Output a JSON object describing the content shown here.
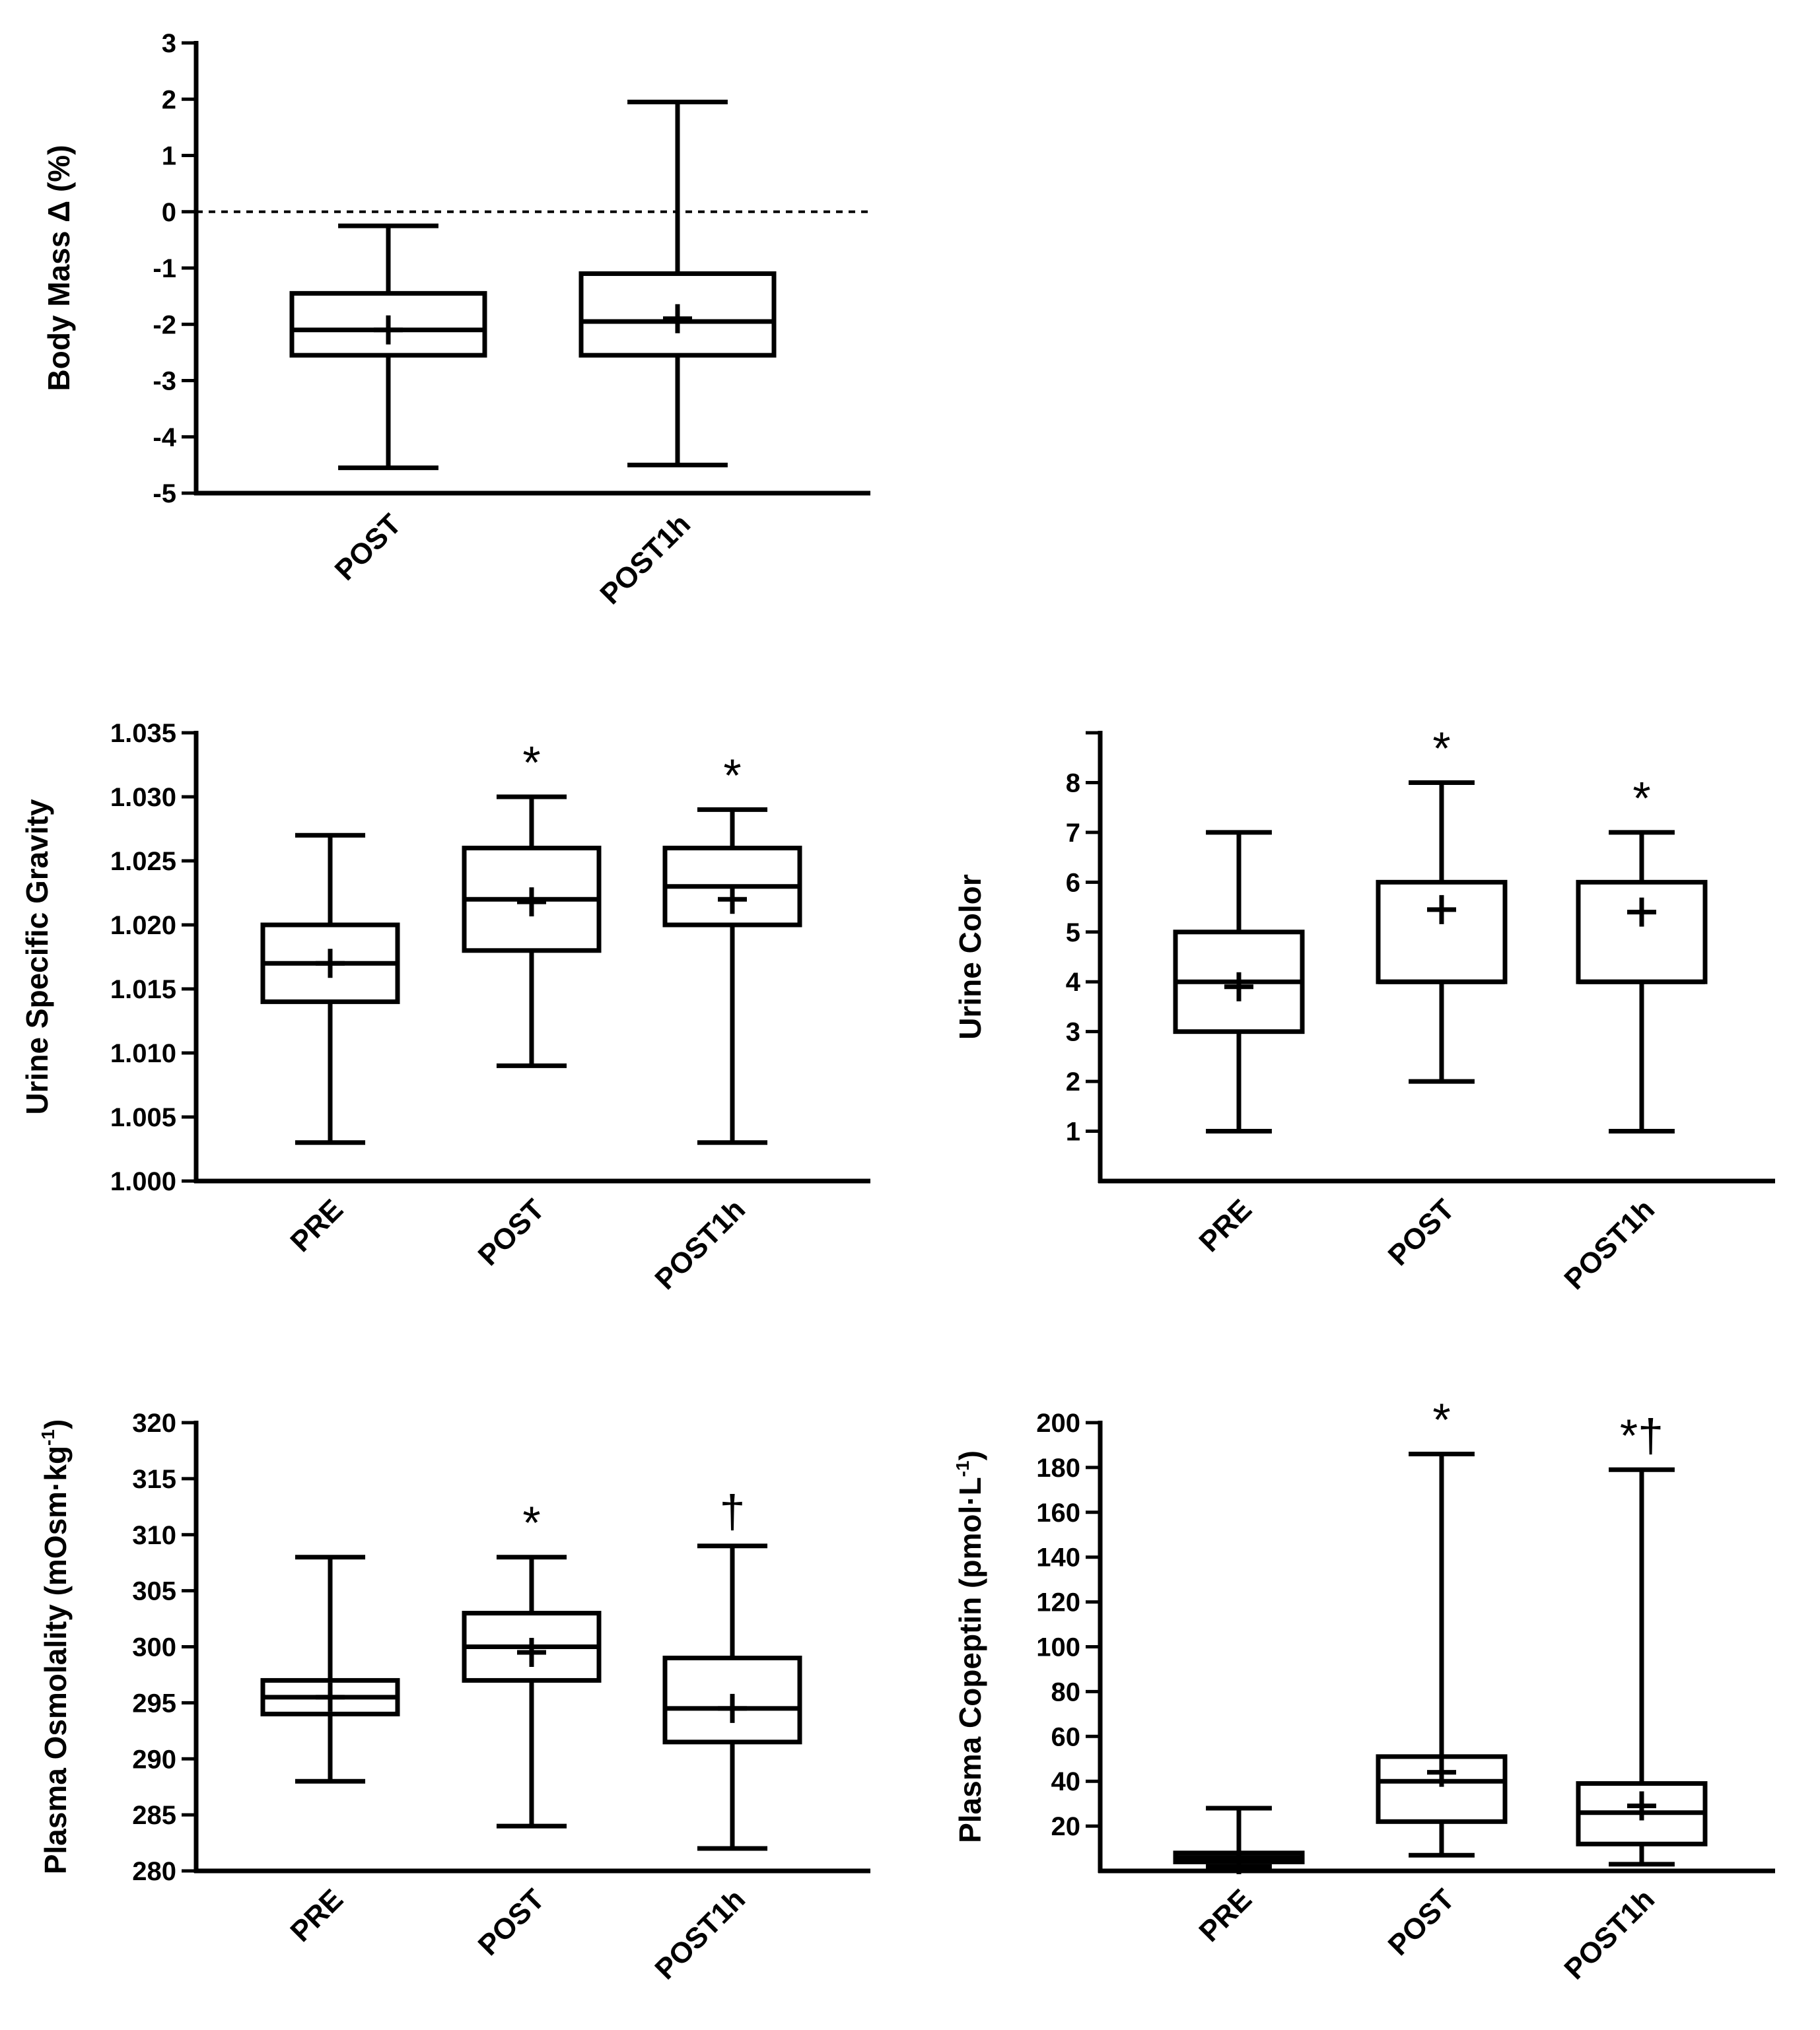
{
  "chart_data": [
    {
      "id": "body-mass",
      "type": "box",
      "title": "",
      "ylabel": "Body Mass Δ (%)",
      "ylim": [
        -5,
        3
      ],
      "yticks": [
        {
          "v": 3,
          "label": "3"
        },
        {
          "v": 2,
          "label": "2"
        },
        {
          "v": 1,
          "label": "1"
        },
        {
          "v": 0,
          "label": "0"
        },
        {
          "v": -1,
          "label": "-1"
        },
        {
          "v": -2,
          "label": "-2"
        },
        {
          "v": -3,
          "label": "-3"
        },
        {
          "v": -4,
          "label": "-4"
        },
        {
          "v": -5,
          "label": "-5"
        }
      ],
      "reference_line": 0,
      "categories": [
        "POST",
        "POST1h"
      ],
      "boxes": [
        {
          "min": -4.55,
          "q1": -2.55,
          "median": -2.1,
          "q3": -1.45,
          "max": -0.25,
          "mean": -2.1,
          "sig": ""
        },
        {
          "min": -4.5,
          "q1": -2.55,
          "median": -1.95,
          "q3": -1.1,
          "max": 1.95,
          "mean": -1.9,
          "sig": ""
        }
      ]
    },
    {
      "id": "usg",
      "type": "box",
      "title": "",
      "ylabel": "Urine Specific Gravity",
      "ylim": [
        1.0,
        1.035
      ],
      "yticks": [
        {
          "v": 1.035,
          "label": "1.035"
        },
        {
          "v": 1.03,
          "label": "1.030"
        },
        {
          "v": 1.025,
          "label": "1.025"
        },
        {
          "v": 1.02,
          "label": "1.020"
        },
        {
          "v": 1.015,
          "label": "1.015"
        },
        {
          "v": 1.01,
          "label": "1.010"
        },
        {
          "v": 1.005,
          "label": "1.005"
        },
        {
          "v": 1.0,
          "label": "1.000"
        }
      ],
      "categories": [
        "PRE",
        "POST",
        "POST1h"
      ],
      "boxes": [
        {
          "min": 1.003,
          "q1": 1.014,
          "median": 1.017,
          "q3": 1.02,
          "max": 1.027,
          "mean": 1.017,
          "sig": ""
        },
        {
          "min": 1.009,
          "q1": 1.018,
          "median": 1.022,
          "q3": 1.026,
          "max": 1.03,
          "mean": 1.0218,
          "sig": "*"
        },
        {
          "min": 1.003,
          "q1": 1.02,
          "median": 1.023,
          "q3": 1.026,
          "max": 1.029,
          "mean": 1.022,
          "sig": "*"
        }
      ]
    },
    {
      "id": "urine-color",
      "type": "box",
      "title": "",
      "ylabel": "Urine Color",
      "ylim": [
        0,
        9
      ],
      "yticks": [
        {
          "v": 1,
          "label": "1"
        },
        {
          "v": 2,
          "label": "2"
        },
        {
          "v": 3,
          "label": "3"
        },
        {
          "v": 4,
          "label": "4"
        },
        {
          "v": 5,
          "label": "5"
        },
        {
          "v": 6,
          "label": "6"
        },
        {
          "v": 7,
          "label": "7"
        },
        {
          "v": 8,
          "label": "8"
        }
      ],
      "minor_ticks": [
        9
      ],
      "categories": [
        "PRE",
        "POST",
        "POST1h"
      ],
      "boxes": [
        {
          "min": 1,
          "q1": 3,
          "median": 4,
          "q3": 5,
          "max": 7,
          "mean": 3.9,
          "sig": ""
        },
        {
          "min": 2,
          "q1": 4,
          "median": 4,
          "q3": 6,
          "max": 8,
          "mean": 5.45,
          "sig": "*"
        },
        {
          "min": 1,
          "q1": 4,
          "median": 4,
          "q3": 6,
          "max": 7,
          "mean": 5.4,
          "sig": "*"
        }
      ]
    },
    {
      "id": "plasma-osmolality",
      "type": "box",
      "title": "",
      "ylabel": "Plasma Osmolality (mOsm·kg",
      "ylabel_sup": "-1",
      "ylabel_suffix": ")",
      "ylim": [
        280,
        320
      ],
      "yticks": [
        {
          "v": 320,
          "label": "320"
        },
        {
          "v": 315,
          "label": "315"
        },
        {
          "v": 310,
          "label": "310"
        },
        {
          "v": 305,
          "label": "305"
        },
        {
          "v": 300,
          "label": "300"
        },
        {
          "v": 295,
          "label": "295"
        },
        {
          "v": 290,
          "label": "290"
        },
        {
          "v": 285,
          "label": "285"
        },
        {
          "v": 280,
          "label": "280"
        }
      ],
      "categories": [
        "PRE",
        "POST",
        "POST1h"
      ],
      "boxes": [
        {
          "min": 288,
          "q1": 294,
          "median": 295.5,
          "q3": 297,
          "max": 308,
          "mean": 295.5,
          "sig": ""
        },
        {
          "min": 284,
          "q1": 297,
          "median": 300,
          "q3": 303,
          "max": 308,
          "mean": 299.5,
          "sig": "*"
        },
        {
          "min": 282,
          "q1": 291.5,
          "median": 294.5,
          "q3": 299,
          "max": 309,
          "mean": 294.5,
          "sig": "†"
        }
      ]
    },
    {
      "id": "plasma-copeptin",
      "type": "box",
      "title": "",
      "ylabel": "Plasma Copeptin (pmol·L",
      "ylabel_sup": "-1",
      "ylabel_suffix": ")",
      "ylim": [
        0,
        200
      ],
      "yticks": [
        {
          "v": 200,
          "label": "200"
        },
        {
          "v": 180,
          "label": "180"
        },
        {
          "v": 160,
          "label": "160"
        },
        {
          "v": 140,
          "label": "140"
        },
        {
          "v": 120,
          "label": "120"
        },
        {
          "v": 100,
          "label": "100"
        },
        {
          "v": 80,
          "label": "80"
        },
        {
          "v": 60,
          "label": "60"
        },
        {
          "v": 40,
          "label": "40"
        },
        {
          "v": 20,
          "label": "20"
        }
      ],
      "categories": [
        "PRE",
        "POST",
        "POST1h"
      ],
      "boxes": [
        {
          "min": 2,
          "q1": 4,
          "median": 6,
          "q3": 8,
          "max": 28,
          "mean": 5,
          "sig": ""
        },
        {
          "min": 7,
          "q1": 22,
          "median": 40,
          "q3": 51,
          "max": 186,
          "mean": 44,
          "sig": "*"
        },
        {
          "min": 3,
          "q1": 12,
          "median": 26,
          "q3": 39,
          "max": 179,
          "mean": 29,
          "sig": "*†"
        }
      ]
    }
  ]
}
